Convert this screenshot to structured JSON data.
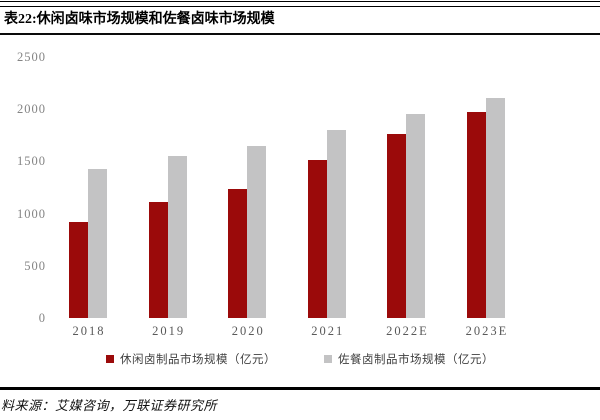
{
  "header": {
    "title": "表22:休闲卤味市场规模和佐餐卤味市场规模"
  },
  "chart_data": {
    "type": "bar",
    "title": "",
    "xlabel": "",
    "ylabel": "",
    "categories": [
      "2018",
      "2019",
      "2020",
      "2021",
      "2022E",
      "2023E"
    ],
    "series": [
      {
        "name": "休闲卤制品市场规模（亿元）",
        "color": "#9B0A0A",
        "values": [
          920,
          1110,
          1240,
          1510,
          1760,
          1970
        ]
      },
      {
        "name": "佐餐卤制品市场规模（亿元）",
        "color": "#C3C3C4",
        "values": [
          1430,
          1550,
          1650,
          1800,
          1950,
          2110
        ]
      }
    ],
    "ylim": [
      0,
      2500
    ],
    "yticks": [
      0,
      500,
      1000,
      1500,
      2000,
      2500
    ],
    "grid": false,
    "legend_position": "bottom"
  },
  "footer": {
    "source": "料来源：艾媒咨询，万联证券研究所"
  }
}
